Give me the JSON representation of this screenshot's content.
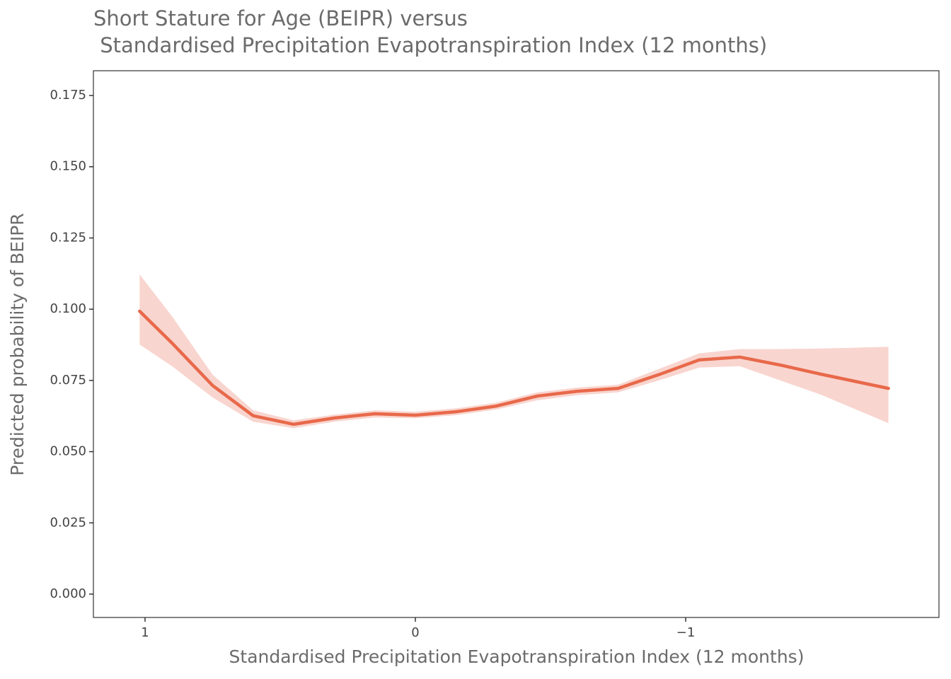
{
  "chart_data": {
    "type": "line",
    "title": [
      "Short Stature for Age (BEIPR) versus",
      " Standardised Precipitation Evapotranspiration Index (12 months)"
    ],
    "x_label": "Standardised Precipitation Evapotranspiration Index (12 months)",
    "y_label": "Predicted probability of BEIPR",
    "x": [
      1.02,
      0.9,
      0.75,
      0.6,
      0.45,
      0.3,
      0.15,
      0,
      -0.15,
      -0.3,
      -0.45,
      -0.6,
      -0.75,
      -0.9,
      -1.05,
      -1.2,
      -1.35,
      -1.5,
      -1.75
    ],
    "series": [
      {
        "color": "#e8694a",
        "band_color": "#f9d5cf",
        "values": [
          0.0993,
          0.0881,
          0.0732,
          0.0626,
          0.0596,
          0.0618,
          0.0633,
          0.0628,
          0.064,
          0.066,
          0.0695,
          0.0712,
          0.0722,
          0.077,
          0.0822,
          0.0832,
          0.0804,
          0.0772,
          0.0722
        ],
        "upper": [
          0.1122,
          0.0975,
          0.077,
          0.0645,
          0.061,
          0.063,
          0.0645,
          0.064,
          0.0652,
          0.0672,
          0.0708,
          0.0725,
          0.0735,
          0.079,
          0.0845,
          0.086,
          0.086,
          0.0862,
          0.0868
        ],
        "lower": [
          0.0876,
          0.08,
          0.069,
          0.0605,
          0.0582,
          0.0605,
          0.062,
          0.0617,
          0.0628,
          0.0648,
          0.068,
          0.0698,
          0.0708,
          0.075,
          0.0795,
          0.08,
          0.075,
          0.07,
          0.06
        ]
      }
    ],
    "xlim": [
      1.191,
      -1.937
    ],
    "xticks": [
      1,
      0,
      {
        "value": -1,
        "label": "−1"
      }
    ],
    "ylim": [
      -0.0082,
      0.1837
    ],
    "yticks": [
      {
        "value": 0,
        "label": "0.000"
      },
      {
        "value": 0.025,
        "label": "0.025"
      },
      {
        "value": 0.05,
        "label": "0.050"
      },
      {
        "value": 0.075,
        "label": "0.075"
      },
      {
        "value": 0.1,
        "label": "0.100"
      },
      {
        "value": 0.125,
        "label": "0.125"
      },
      {
        "value": 0.15,
        "label": "0.150"
      },
      {
        "value": 0.175,
        "label": "0.175"
      }
    ],
    "grid": false
  }
}
